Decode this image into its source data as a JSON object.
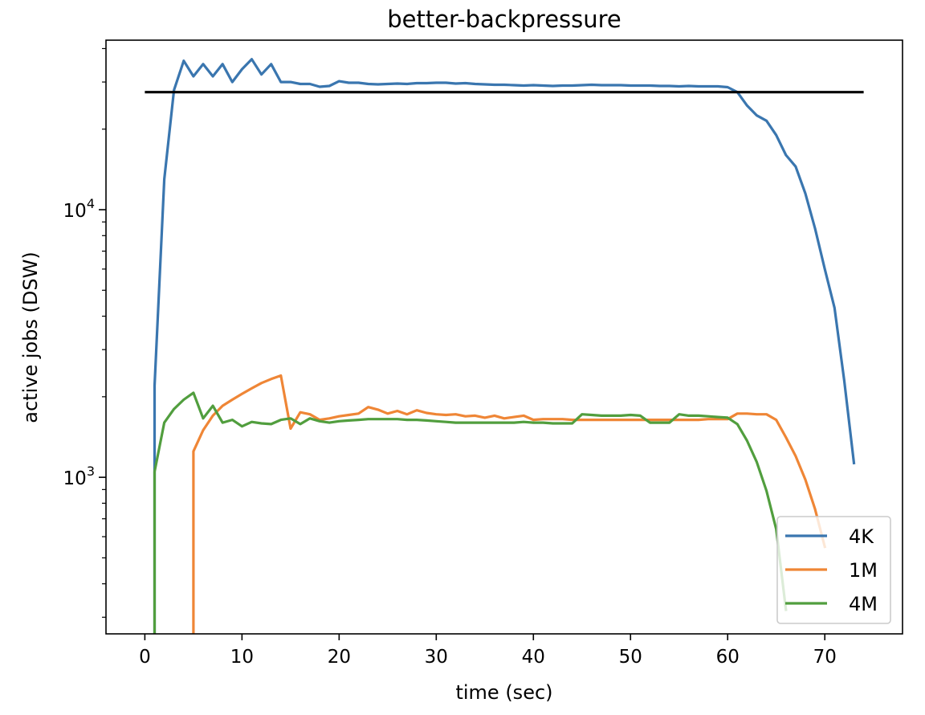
{
  "chart_data": {
    "type": "line",
    "title": "better-backpressure",
    "xlabel": "time (sec)",
    "ylabel": "active jobs (DSW)",
    "xlim": [
      -4,
      78
    ],
    "ylim": [
      260,
      43000
    ],
    "yscale": "log",
    "x_ticks": [
      0,
      10,
      20,
      30,
      40,
      50,
      60,
      70
    ],
    "y_ticks": [
      {
        "value": 1000,
        "label": "10^3",
        "base": "10",
        "exp": "3"
      },
      {
        "value": 10000,
        "label": "10^4",
        "base": "10",
        "exp": "4"
      }
    ],
    "grid": false,
    "legend_position": "lower-right",
    "reference_line": {
      "y": 27500,
      "x": [
        0,
        74
      ],
      "color": "#000000"
    },
    "series": [
      {
        "name": "4K",
        "color": "#3a76af",
        "x": [
          1,
          1,
          2,
          3,
          4,
          5,
          6,
          7,
          8,
          9,
          10,
          11,
          12,
          13,
          14,
          15,
          16,
          17,
          18,
          19,
          20,
          21,
          22,
          23,
          24,
          25,
          26,
          27,
          28,
          29,
          30,
          31,
          32,
          33,
          34,
          35,
          36,
          37,
          38,
          39,
          40,
          41,
          42,
          43,
          44,
          45,
          46,
          47,
          48,
          49,
          50,
          51,
          52,
          53,
          54,
          55,
          56,
          57,
          58,
          59,
          60,
          61,
          62,
          63,
          64,
          65,
          66,
          67,
          68,
          69,
          70,
          71,
          72,
          73
        ],
        "y": [
          260,
          2200,
          13000,
          28000,
          36000,
          31500,
          35000,
          31500,
          35000,
          30000,
          33500,
          36500,
          32000,
          35000,
          30000,
          30000,
          29500,
          29500,
          28800,
          29000,
          30200,
          29800,
          29800,
          29500,
          29400,
          29500,
          29600,
          29500,
          29700,
          29700,
          29800,
          29800,
          29600,
          29700,
          29500,
          29400,
          29300,
          29300,
          29200,
          29100,
          29200,
          29100,
          29000,
          29100,
          29100,
          29200,
          29300,
          29200,
          29200,
          29200,
          29100,
          29100,
          29100,
          29000,
          29000,
          28900,
          29000,
          28900,
          28900,
          28900,
          28700,
          27500,
          24500,
          22500,
          21500,
          19000,
          16000,
          14500,
          11500,
          8500,
          6000,
          4300,
          2300,
          1130
        ]
      },
      {
        "name": "1M",
        "color": "#ef8636",
        "x": [
          5,
          5,
          6,
          7,
          8,
          9,
          10,
          11,
          12,
          13,
          14,
          15,
          16,
          17,
          18,
          19,
          20,
          21,
          22,
          23,
          24,
          25,
          26,
          27,
          28,
          29,
          30,
          31,
          32,
          33,
          34,
          35,
          36,
          37,
          38,
          39,
          40,
          41,
          42,
          43,
          44,
          45,
          46,
          47,
          48,
          49,
          50,
          51,
          52,
          53,
          54,
          55,
          56,
          57,
          58,
          59,
          60,
          61,
          62,
          63,
          64,
          65,
          66,
          67,
          68,
          69,
          70
        ],
        "y": [
          260,
          1250,
          1500,
          1700,
          1850,
          1950,
          2050,
          2150,
          2250,
          2330,
          2400,
          1520,
          1750,
          1720,
          1640,
          1660,
          1690,
          1710,
          1730,
          1830,
          1790,
          1730,
          1770,
          1720,
          1780,
          1740,
          1720,
          1710,
          1720,
          1690,
          1700,
          1670,
          1700,
          1660,
          1680,
          1700,
          1640,
          1650,
          1650,
          1650,
          1640,
          1640,
          1640,
          1640,
          1640,
          1640,
          1640,
          1640,
          1640,
          1640,
          1640,
          1640,
          1640,
          1640,
          1650,
          1650,
          1650,
          1730,
          1730,
          1720,
          1720,
          1640,
          1410,
          1200,
          980,
          760,
          550
        ]
      },
      {
        "name": "4M",
        "color": "#519e3e",
        "x": [
          1,
          1,
          2,
          3,
          4,
          5,
          6,
          7,
          8,
          9,
          10,
          11,
          12,
          13,
          14,
          15,
          16,
          17,
          18,
          19,
          20,
          21,
          22,
          23,
          24,
          25,
          26,
          27,
          28,
          29,
          30,
          31,
          32,
          33,
          34,
          35,
          36,
          37,
          38,
          39,
          40,
          41,
          42,
          43,
          44,
          45,
          46,
          47,
          48,
          49,
          50,
          51,
          52,
          53,
          54,
          55,
          56,
          57,
          58,
          59,
          60,
          61,
          62,
          63,
          64,
          65,
          66
        ],
        "y": [
          260,
          1050,
          1600,
          1800,
          1950,
          2070,
          1660,
          1850,
          1600,
          1640,
          1550,
          1610,
          1590,
          1580,
          1640,
          1660,
          1580,
          1660,
          1620,
          1600,
          1620,
          1630,
          1640,
          1650,
          1650,
          1650,
          1650,
          1640,
          1640,
          1630,
          1620,
          1610,
          1600,
          1600,
          1600,
          1600,
          1600,
          1600,
          1600,
          1610,
          1600,
          1600,
          1590,
          1590,
          1590,
          1720,
          1710,
          1700,
          1700,
          1700,
          1710,
          1700,
          1600,
          1600,
          1600,
          1720,
          1700,
          1700,
          1690,
          1680,
          1670,
          1580,
          1370,
          1140,
          890,
          640,
          320
        ]
      }
    ]
  }
}
